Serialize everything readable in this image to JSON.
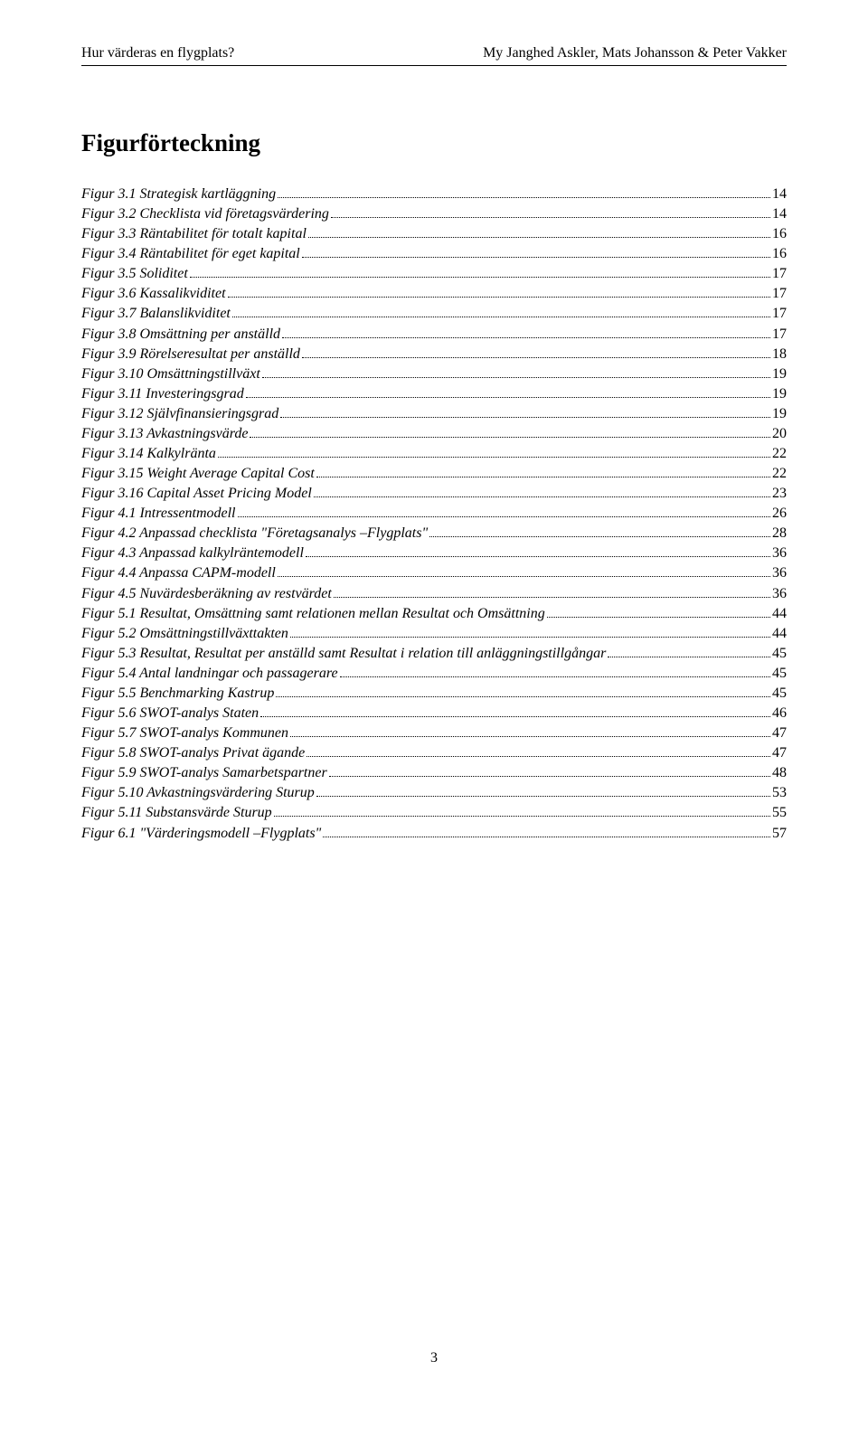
{
  "header": {
    "left": "Hur värderas en flygplats?",
    "right": "My Janghed Askler, Mats Johansson & Peter Vakker"
  },
  "title": "Figurförteckning",
  "entries": [
    {
      "label": "Figur 3.1 Strategisk kartläggning",
      "page": "14"
    },
    {
      "label": "Figur 3.2 Checklista vid företagsvärdering",
      "page": "14"
    },
    {
      "label": "Figur 3.3 Räntabilitet för totalt kapital",
      "page": "16"
    },
    {
      "label": "Figur 3.4 Räntabilitet för eget kapital",
      "page": "16"
    },
    {
      "label": "Figur 3.5 Soliditet",
      "page": "17"
    },
    {
      "label": "Figur 3.6 Kassalikviditet",
      "page": "17"
    },
    {
      "label": "Figur 3.7 Balanslikviditet",
      "page": "17"
    },
    {
      "label": "Figur 3.8 Omsättning per anställd",
      "page": "17"
    },
    {
      "label": "Figur 3.9 Rörelseresultat per anställd",
      "page": "18"
    },
    {
      "label": "Figur 3.10 Omsättningstillväxt",
      "page": "19"
    },
    {
      "label": "Figur 3.11 Investeringsgrad",
      "page": "19"
    },
    {
      "label": "Figur 3.12 Självfinansieringsgrad",
      "page": "19"
    },
    {
      "label": "Figur 3.13 Avkastningsvärde",
      "page": "20"
    },
    {
      "label": "Figur 3.14 Kalkylränta",
      "page": "22"
    },
    {
      "label": "Figur 3.15 Weight Average Capital Cost",
      "page": "22"
    },
    {
      "label": "Figur 3.16 Capital Asset Pricing Model",
      "page": "23"
    },
    {
      "label": "Figur 4.1 Intressentmodell",
      "page": "26"
    },
    {
      "label": "Figur 4.2 Anpassad checklista \"Företagsanalys –Flygplats\"",
      "page": "28"
    },
    {
      "label": "Figur 4.3 Anpassad kalkylräntemodell",
      "page": "36"
    },
    {
      "label": "Figur 4.4 Anpassa CAPM-modell",
      "page": "36"
    },
    {
      "label": "Figur 4.5 Nuvärdesberäkning av restvärdet",
      "page": "36"
    },
    {
      "label": "Figur 5.1 Resultat, Omsättning samt relationen mellan Resultat och Omsättning",
      "page": "44"
    },
    {
      "label": "Figur 5.2 Omsättningstillväxttakten",
      "page": "44"
    },
    {
      "label": "Figur 5.3 Resultat, Resultat per anställd samt Resultat i relation till anläggningstillgångar",
      "page": "45"
    },
    {
      "label": "Figur 5.4 Antal landningar och passagerare",
      "page": "45"
    },
    {
      "label": "Figur 5.5 Benchmarking Kastrup",
      "page": "45"
    },
    {
      "label": "Figur 5.6 SWOT-analys Staten",
      "page": "46"
    },
    {
      "label": "Figur 5.7 SWOT-analys Kommunen",
      "page": "47"
    },
    {
      "label": "Figur 5.8 SWOT-analys Privat ägande",
      "page": "47"
    },
    {
      "label": "Figur 5.9 SWOT-analys Samarbetspartner",
      "page": "48"
    },
    {
      "label": "Figur 5.10 Avkastningsvärdering Sturup",
      "page": "53"
    },
    {
      "label": "Figur 5.11 Substansvärde Sturup",
      "page": "55"
    },
    {
      "label": "Figur 6.1 \"Värderingsmodell –Flygplats\"",
      "page": "57"
    }
  ],
  "footer": {
    "pageNumber": "3"
  }
}
